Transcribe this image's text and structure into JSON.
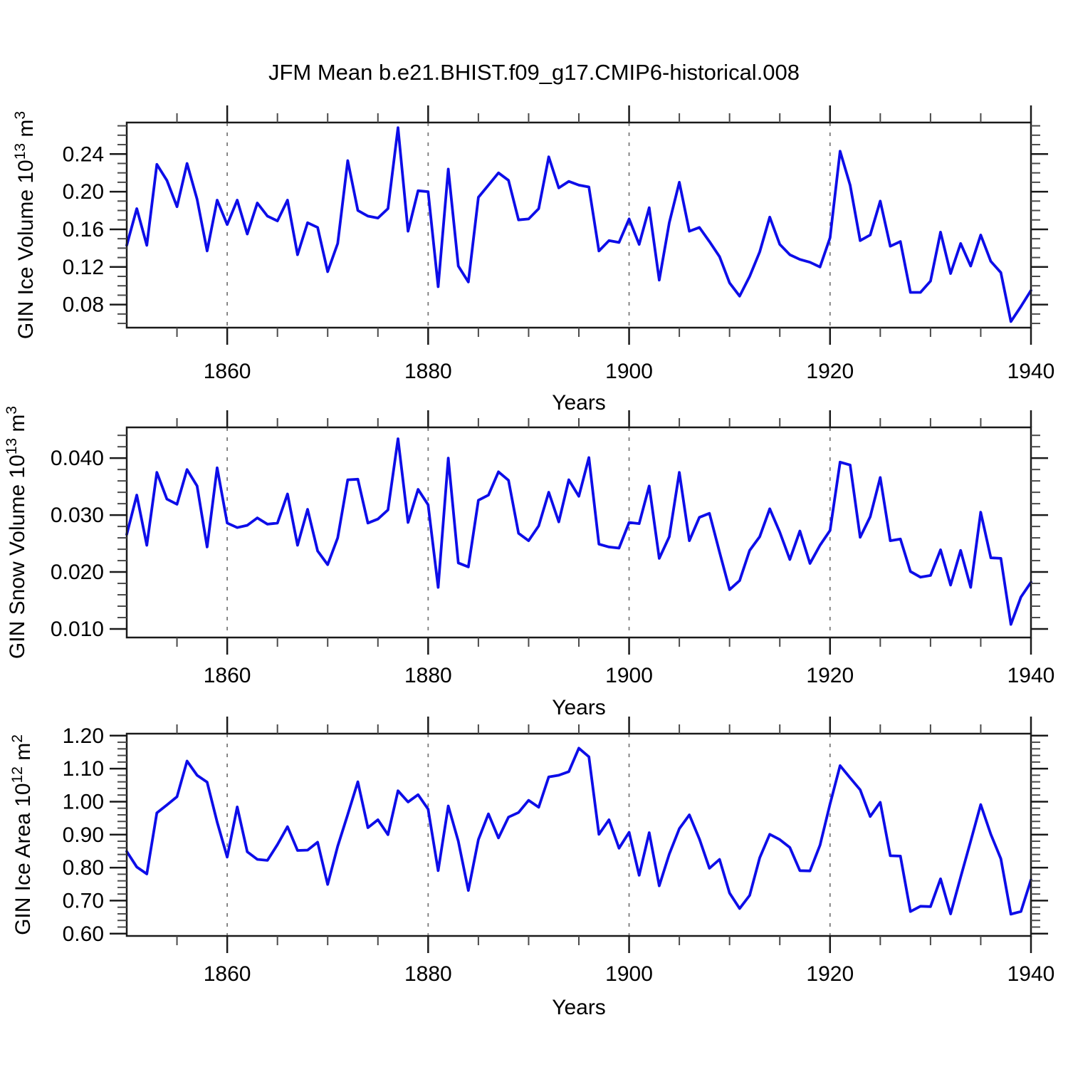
{
  "title": "JFM Mean b.e21.BHIST.f09_g17.CMIP6-historical.008",
  "colors": {
    "line": "#0d0de8",
    "frame": "#1a1a1a",
    "minor_tick": "#4a4a4a",
    "grid": "#7a7a7a",
    "text": "#000000"
  },
  "chart_data": [
    {
      "type": "line",
      "panel_name": "gin-ice-volume",
      "ylabel_parts": [
        {
          "t": "GIN Ice Volume 10"
        },
        {
          "t": "13",
          "sup": true
        },
        {
          "t": " m"
        },
        {
          "t": "3",
          "sup": true
        }
      ],
      "xlabel": "Years",
      "x_start": 1850,
      "x_end": 1940,
      "x_step": 1,
      "xlim": [
        1850,
        1940
      ],
      "ylim": [
        0.0555,
        0.2735
      ],
      "xticks_major": [
        1860,
        1880,
        1900,
        1920,
        1940
      ],
      "x_minor_step": 5,
      "yticks_major": [
        0.08,
        0.12,
        0.16,
        0.2,
        0.24
      ],
      "y_minor_step": 0.01,
      "y_decimals": 2,
      "grid_x": [
        1860,
        1880,
        1900,
        1920
      ],
      "values": [
        0.143,
        0.182,
        0.143,
        0.229,
        0.212,
        0.184,
        0.23,
        0.192,
        0.137,
        0.191,
        0.165,
        0.191,
        0.155,
        0.188,
        0.174,
        0.169,
        0.191,
        0.133,
        0.167,
        0.162,
        0.115,
        0.145,
        0.233,
        0.18,
        0.174,
        0.172,
        0.182,
        0.268,
        0.158,
        0.201,
        0.2,
        0.099,
        0.224,
        0.121,
        0.104,
        0.194,
        0.207,
        0.22,
        0.212,
        0.17,
        0.171,
        0.182,
        0.237,
        0.204,
        0.211,
        0.207,
        0.205,
        0.137,
        0.148,
        0.146,
        0.171,
        0.144,
        0.183,
        0.106,
        0.167,
        0.21,
        0.158,
        0.162,
        0.147,
        0.131,
        0.103,
        0.089,
        0.11,
        0.136,
        0.173,
        0.144,
        0.133,
        0.128,
        0.125,
        0.12,
        0.151,
        0.243,
        0.207,
        0.148,
        0.154,
        0.19,
        0.142,
        0.147,
        0.093,
        0.093,
        0.105,
        0.157,
        0.113,
        0.145,
        0.121,
        0.154,
        0.126,
        0.114,
        0.062,
        0.078,
        0.095
      ]
    },
    {
      "type": "line",
      "panel_name": "gin-snow-volume",
      "ylabel_parts": [
        {
          "t": "GIN Snow Volume 10"
        },
        {
          "t": "13",
          "sup": true
        },
        {
          "t": " m"
        },
        {
          "t": "3",
          "sup": true
        }
      ],
      "xlabel": "Years",
      "x_start": 1850,
      "x_end": 1940,
      "x_step": 1,
      "xlim": [
        1850,
        1940
      ],
      "ylim": [
        0.0085,
        0.0454
      ],
      "xticks_major": [
        1860,
        1880,
        1900,
        1920,
        1940
      ],
      "x_minor_step": 5,
      "yticks_major": [
        0.01,
        0.02,
        0.03,
        0.04
      ],
      "y_minor_step": 0.002,
      "y_decimals": 3,
      "grid_x": [
        1860,
        1880,
        1900,
        1920
      ],
      "values": [
        0.0266,
        0.0335,
        0.0247,
        0.0375,
        0.0328,
        0.0319,
        0.038,
        0.0351,
        0.0244,
        0.0383,
        0.0286,
        0.0278,
        0.0282,
        0.0295,
        0.0284,
        0.0286,
        0.0337,
        0.0247,
        0.031,
        0.0237,
        0.0213,
        0.026,
        0.0362,
        0.0363,
        0.0286,
        0.0293,
        0.0309,
        0.0434,
        0.0287,
        0.0345,
        0.0318,
        0.0173,
        0.04,
        0.0216,
        0.0209,
        0.0326,
        0.0335,
        0.0376,
        0.0361,
        0.0268,
        0.0255,
        0.0281,
        0.034,
        0.0288,
        0.0362,
        0.0333,
        0.0401,
        0.0249,
        0.0244,
        0.0242,
        0.0287,
        0.0285,
        0.0351,
        0.0224,
        0.0262,
        0.0375,
        0.0255,
        0.0296,
        0.0303,
        0.0235,
        0.0169,
        0.0185,
        0.0238,
        0.0262,
        0.0311,
        0.027,
        0.0222,
        0.0272,
        0.0215,
        0.0247,
        0.0273,
        0.0393,
        0.0388,
        0.0261,
        0.0297,
        0.0366,
        0.0255,
        0.0258,
        0.0201,
        0.0191,
        0.0194,
        0.0239,
        0.0177,
        0.0238,
        0.0173,
        0.0305,
        0.0225,
        0.0224,
        0.0108,
        0.0156,
        0.0182
      ]
    },
    {
      "type": "line",
      "panel_name": "gin-ice-area",
      "ylabel_parts": [
        {
          "t": "GIN Ice Area 10"
        },
        {
          "t": "12",
          "sup": true
        },
        {
          "t": " m"
        },
        {
          "t": "2",
          "sup": true
        }
      ],
      "xlabel": "Years",
      "x_start": 1850,
      "x_end": 1940,
      "x_step": 1,
      "xlim": [
        1850,
        1940
      ],
      "ylim": [
        0.593,
        1.206
      ],
      "xticks_major": [
        1860,
        1880,
        1900,
        1920,
        1940
      ],
      "x_minor_step": 5,
      "yticks_major": [
        0.6,
        0.7,
        0.8,
        0.9,
        1.0,
        1.1,
        1.2
      ],
      "y_minor_step": 0.02,
      "y_decimals": 2,
      "grid_x": [
        1860,
        1880,
        1900,
        1920
      ],
      "values": [
        0.849,
        0.802,
        0.781,
        0.966,
        0.99,
        1.015,
        1.123,
        1.08,
        1.059,
        0.938,
        0.832,
        0.984,
        0.848,
        0.825,
        0.822,
        0.87,
        0.924,
        0.852,
        0.853,
        0.877,
        0.749,
        0.865,
        0.961,
        1.06,
        0.921,
        0.945,
        0.9,
        1.033,
        0.999,
        1.021,
        0.977,
        0.791,
        0.987,
        0.88,
        0.731,
        0.885,
        0.963,
        0.89,
        0.953,
        0.967,
        1.004,
        0.983,
        1.075,
        1.08,
        1.091,
        1.162,
        1.136,
        0.901,
        0.945,
        0.859,
        0.907,
        0.777,
        0.906,
        0.745,
        0.841,
        0.918,
        0.96,
        0.887,
        0.798,
        0.825,
        0.723,
        0.676,
        0.716,
        0.83,
        0.901,
        0.885,
        0.861,
        0.791,
        0.79,
        0.868,
        0.993,
        1.109,
        1.072,
        1.036,
        0.955,
        0.998,
        0.836,
        0.835,
        0.667,
        0.683,
        0.682,
        0.766,
        0.66,
        0.771,
        0.88,
        0.991,
        0.901,
        0.827,
        0.659,
        0.667,
        0.763
      ]
    }
  ]
}
